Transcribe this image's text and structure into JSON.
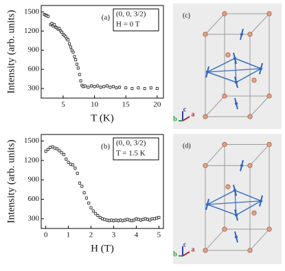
{
  "chart_data": [
    {
      "type": "scatter",
      "panel_label": "(a)",
      "annotation": [
        "(0, 0, 3/2)",
        "H = 0 T"
      ],
      "y_label": "Intensity (arb. units)",
      "x_label": "T (K)",
      "xlim": [
        1.5,
        21
      ],
      "xticks": [
        5,
        10,
        15,
        20
      ],
      "ylim": [
        150,
        1600
      ],
      "yticks": [
        300,
        600,
        900,
        1200,
        1500
      ],
      "error": 25,
      "color": "#222222",
      "series": [
        {
          "x": [
            2.0,
            2.2,
            2.4,
            2.6,
            3.0,
            3.2,
            3.4,
            3.6,
            3.8,
            4.0,
            4.2,
            4.4,
            4.6,
            4.8,
            5.0,
            5.2,
            5.4,
            5.6,
            5.8,
            6.0,
            6.2,
            6.4,
            6.6,
            6.8,
            7.0,
            7.2,
            7.4,
            7.6,
            7.8,
            8.0,
            8.2,
            8.5,
            9.0,
            9.5,
            10.0,
            10.5,
            11.0,
            11.5,
            12.0,
            12.5,
            13.0,
            13.5,
            14.0,
            15.0,
            16.0,
            17.0,
            18.0,
            19.0,
            20.0
          ],
          "values": [
            1460,
            1450,
            1440,
            1430,
            1300,
            1320,
            1280,
            1300,
            1260,
            1250,
            1230,
            1240,
            1200,
            1180,
            1150,
            1130,
            1110,
            1080,
            1060,
            1000,
            950,
            900,
            870,
            800,
            750,
            680,
            620,
            520,
            420,
            350,
            330,
            340,
            320,
            340,
            330,
            340,
            320,
            330,
            340,
            320,
            330,
            310,
            320,
            310,
            300,
            310,
            300,
            310,
            300
          ]
        }
      ]
    },
    {
      "type": "scatter",
      "panel_label": "(b)",
      "annotation": [
        "(0, 0, 3/2)",
        "T = 1.5 K"
      ],
      "y_label": "Intensity (arb. units)",
      "x_label": "H (T)",
      "xlim": [
        -0.2,
        5.2
      ],
      "xticks": [
        0,
        1,
        2,
        3,
        4,
        5
      ],
      "ylim": [
        150,
        1600
      ],
      "yticks": [
        300,
        600,
        900,
        1200,
        1500
      ],
      "error": 25,
      "color": "#222222",
      "series": [
        {
          "x": [
            0.0,
            0.1,
            0.2,
            0.3,
            0.4,
            0.5,
            0.6,
            0.7,
            0.8,
            0.9,
            1.0,
            1.1,
            1.2,
            1.3,
            1.4,
            1.5,
            1.6,
            1.7,
            1.8,
            1.9,
            2.0,
            2.1,
            2.2,
            2.3,
            2.4,
            2.5,
            2.6,
            2.7,
            2.8,
            2.9,
            3.0,
            3.1,
            3.2,
            3.3,
            3.4,
            3.5,
            3.6,
            3.7,
            3.8,
            3.9,
            4.0,
            4.1,
            4.2,
            4.3,
            4.4,
            4.5,
            4.6,
            4.7,
            4.8,
            4.9,
            5.0
          ],
          "values": [
            1340,
            1370,
            1400,
            1410,
            1390,
            1380,
            1350,
            1320,
            1290,
            1220,
            1170,
            1140,
            1130,
            1080,
            1000,
            850,
            800,
            700,
            620,
            540,
            470,
            420,
            380,
            350,
            320,
            300,
            290,
            280,
            270,
            280,
            270,
            280,
            270,
            280,
            270,
            280,
            290,
            280,
            270,
            280,
            300,
            290,
            280,
            290,
            300,
            290,
            280,
            300,
            300,
            310,
            320
          ]
        }
      ]
    }
  ],
  "structure_panels": [
    {
      "label": "(c)",
      "axes": [
        "c",
        "b",
        "a"
      ]
    },
    {
      "label": "(d)",
      "axes": [
        "c",
        "b",
        "a"
      ]
    }
  ]
}
